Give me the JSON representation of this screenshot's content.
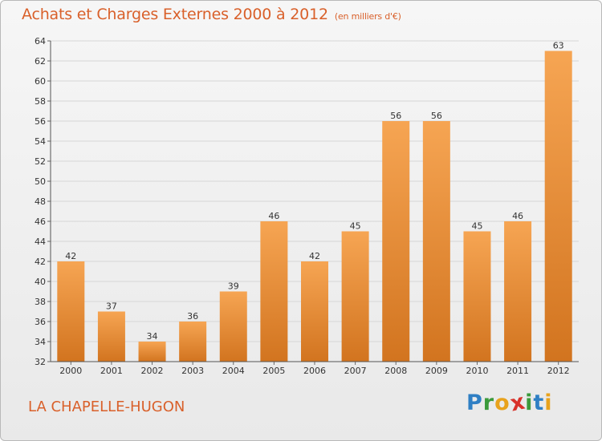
{
  "title": "Achats et Charges Externes 2000 à 2012",
  "subtitle": "(en milliers d'€)",
  "town": "LA CHAPELLE-HUGON",
  "logo": {
    "letters": [
      "P",
      "r",
      "o",
      "x",
      "i",
      "t",
      "i"
    ],
    "colors": [
      "#2f7fc4",
      "#3b9a3b",
      "#e8a21c",
      "#d8322a",
      "#3b9a3b",
      "#2f7fc4",
      "#e8a21c"
    ]
  },
  "colors": {
    "bar_top": "#f6a553",
    "bar_bottom": "#d2741f",
    "grid": "#d6d6d6",
    "axis_text": "#333333"
  },
  "chart_data": {
    "type": "bar",
    "categories": [
      "2000",
      "2001",
      "2002",
      "2003",
      "2004",
      "2005",
      "2006",
      "2007",
      "2008",
      "2009",
      "2010",
      "2011",
      "2012"
    ],
    "values": [
      42,
      37,
      34,
      36,
      39,
      46,
      42,
      45,
      56,
      56,
      45,
      46,
      63
    ],
    "ylim": [
      32,
      64
    ],
    "yticks": [
      32,
      34,
      36,
      38,
      40,
      42,
      44,
      46,
      48,
      50,
      52,
      54,
      56,
      58,
      60,
      62,
      64
    ],
    "grid": true,
    "xlabel": "",
    "ylabel": ""
  }
}
